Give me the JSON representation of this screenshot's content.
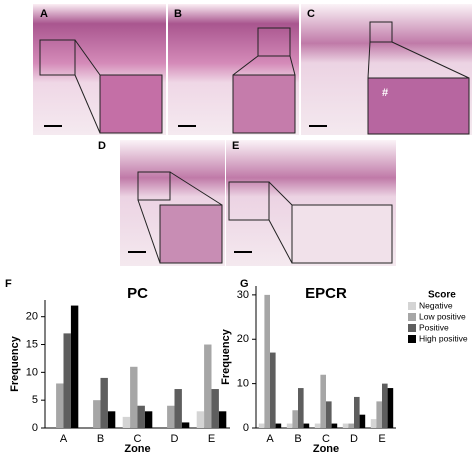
{
  "panel_labels": [
    "A",
    "B",
    "C",
    "D",
    "E",
    "F",
    "G"
  ],
  "annotation": "#",
  "chart_data": [
    {
      "type": "bar",
      "title": "PC",
      "x_label": "Zone",
      "y_label": "Frequency",
      "categories": [
        "A",
        "B",
        "C",
        "D",
        "E"
      ],
      "series": [
        {
          "color": "#d4d4d4",
          "values": [
            0,
            0,
            2,
            0,
            3
          ]
        },
        {
          "color": "#a6a6a6",
          "values": [
            8,
            5,
            11,
            4,
            15
          ]
        },
        {
          "color": "#5e5e5e",
          "values": [
            17,
            9,
            4,
            7,
            7
          ]
        },
        {
          "color": "#000000",
          "values": [
            22,
            3,
            3,
            1,
            3
          ]
        }
      ],
      "ylim": [
        0,
        23
      ],
      "yticks": [
        0,
        5,
        10,
        15,
        20
      ]
    },
    {
      "type": "bar",
      "title": "EPCR",
      "x_label": "Zone",
      "y_label": "Frequency",
      "categories": [
        "A",
        "B",
        "C",
        "D",
        "E"
      ],
      "legend_title": "Score",
      "series": [
        {
          "name": "Negative",
          "color": "#d4d4d4",
          "values": [
            1,
            1,
            1,
            1,
            2
          ]
        },
        {
          "name": "Low positive",
          "color": "#a6a6a6",
          "values": [
            30,
            4,
            12,
            1,
            6
          ]
        },
        {
          "name": "Positive",
          "color": "#5e5e5e",
          "values": [
            17,
            9,
            6,
            7,
            10
          ]
        },
        {
          "name": "High positive",
          "color": "#000000",
          "values": [
            1,
            1,
            1,
            3,
            9
          ]
        }
      ],
      "ylim": [
        0,
        32
      ],
      "yticks": [
        0,
        10,
        20,
        30
      ]
    }
  ]
}
